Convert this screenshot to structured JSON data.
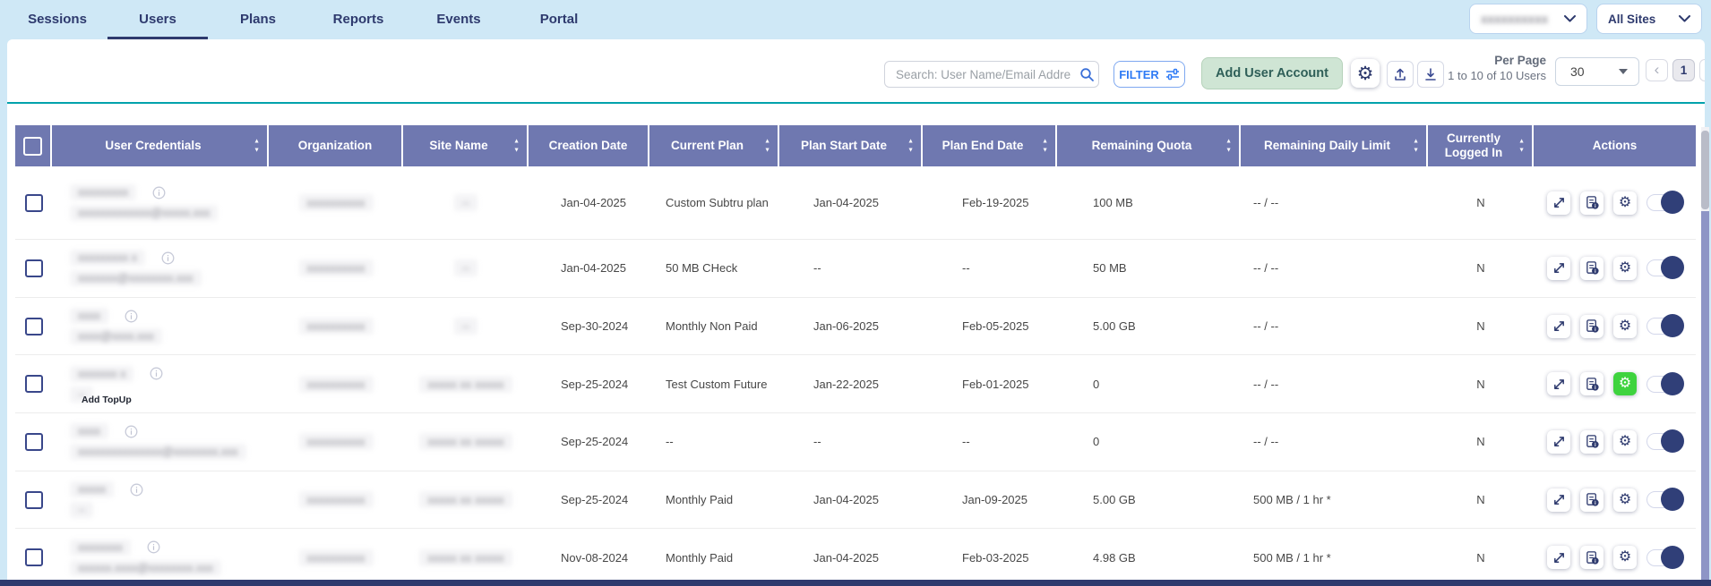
{
  "colors": {
    "page_bg": "#cfe8f6",
    "navy": "#2e3a6e",
    "table_header_bg": "#6f78b0",
    "teal_line": "#00a2ac",
    "add_user_green": "#cfe5d4",
    "filter_blue": "#2f7bf5",
    "topup_green": "#3ed33e",
    "scrollbar_purple": "#8e95c6"
  },
  "tabs": [
    {
      "label": "Sessions",
      "active": false
    },
    {
      "label": "Users",
      "active": true
    },
    {
      "label": "Plans",
      "active": false
    },
    {
      "label": "Reports",
      "active": false
    },
    {
      "label": "Events",
      "active": false
    },
    {
      "label": "Portal",
      "active": false
    }
  ],
  "top_right": {
    "account_select": {
      "value": "xxxxxxxxxx",
      "redacted": true,
      "icon": "chevron-down-icon"
    },
    "site_select": {
      "value": "All Sites",
      "icon": "chevron-down-icon"
    }
  },
  "toolbar": {
    "search": {
      "placeholder": "Search: User Name/Email Addre",
      "icon": "magnifier-icon"
    },
    "filter_button": {
      "label": "FILTER",
      "icon": "sliders-icon"
    },
    "add_user_button": {
      "label": "Add User Account"
    },
    "icon_buttons": [
      "settings-gear-icon",
      "upload-icon",
      "download-icon"
    ],
    "per_page_label": "Per Page",
    "range_text": "1 to 10 of 10 Users",
    "per_page_value": "30",
    "pagination": {
      "prev_icon": "chevron-left-icon",
      "current_page": "1",
      "next_icon": "chevron-right-icon"
    }
  },
  "table": {
    "columns": [
      {
        "label": "User Credentials",
        "sortable": true
      },
      {
        "label": "Organization",
        "sortable": false
      },
      {
        "label": "Site Name",
        "sortable": true
      },
      {
        "label": "Creation Date",
        "sortable": false
      },
      {
        "label": "Current Plan",
        "sortable": true
      },
      {
        "label": "Plan Start Date",
        "sortable": true
      },
      {
        "label": "Plan End Date",
        "sortable": true
      },
      {
        "label": "Remaining Quota",
        "sortable": true
      },
      {
        "label": "Remaining Daily Limit",
        "sortable": true
      },
      {
        "label": "Currently Logged In",
        "sortable": true
      },
      {
        "label": "Actions",
        "sortable": false
      }
    ],
    "rows": [
      {
        "user": {
          "name": "xxxxxxxxx",
          "email": "xxxxxxxxxxxxx@xxxxx.xxx",
          "redacted": true
        },
        "organization": {
          "text": "xxxxxxxxxx",
          "redacted": true
        },
        "site_name": {
          "text": "--",
          "redacted": true
        },
        "creation_date": "Jan-04-2025",
        "current_plan": "Custom Subtru plan",
        "plan_start_date": "Jan-04-2025",
        "plan_end_date": "Feb-19-2025",
        "remaining_quota": "100 MB",
        "remaining_daily_limit": "-- / --",
        "currently_logged_in": "N",
        "actions": {
          "topup_highlight": false,
          "topup_label": "",
          "toggle_on": true
        }
      },
      {
        "user": {
          "name": "xxxxxxxxx x",
          "email": "xxxxxxx@xxxxxxxx.xxx",
          "redacted": true
        },
        "organization": {
          "text": "xxxxxxxxxx",
          "redacted": true
        },
        "site_name": {
          "text": "--",
          "redacted": true
        },
        "creation_date": "Jan-04-2025",
        "current_plan": "50 MB CHeck",
        "plan_start_date": "--",
        "plan_end_date": "--",
        "remaining_quota": "50 MB",
        "remaining_daily_limit": "-- / --",
        "currently_logged_in": "N",
        "actions": {
          "topup_highlight": false,
          "topup_label": "",
          "toggle_on": true
        }
      },
      {
        "user": {
          "name": "xxxx",
          "email": "xxxx@xxxx.xxx",
          "redacted": true
        },
        "organization": {
          "text": "xxxxxxxxxx",
          "redacted": true
        },
        "site_name": {
          "text": "--",
          "redacted": true
        },
        "creation_date": "Sep-30-2024",
        "current_plan": "Monthly Non Paid",
        "plan_start_date": "Jan-06-2025",
        "plan_end_date": "Feb-05-2025",
        "remaining_quota": "5.00 GB",
        "remaining_daily_limit": "-- / --",
        "currently_logged_in": "N",
        "actions": {
          "topup_highlight": false,
          "topup_label": "",
          "toggle_on": true
        }
      },
      {
        "user": {
          "name": "xxxxxxx x",
          "email": "--",
          "redacted": true
        },
        "organization": {
          "text": "xxxxxxxxxx",
          "redacted": true
        },
        "site_name": {
          "text": "xxxxx xx xxxxx",
          "redacted": true
        },
        "creation_date": "Sep-25-2024",
        "current_plan": "Test Custom Future",
        "plan_start_date": "Jan-22-2025",
        "plan_end_date": "Feb-01-2025",
        "remaining_quota": "0",
        "remaining_daily_limit": "-- / --",
        "currently_logged_in": "N",
        "actions": {
          "topup_highlight": true,
          "topup_label": "Add TopUp",
          "toggle_on": true
        }
      },
      {
        "user": {
          "name": "xxxx",
          "email": "xxxxxxxxxxxxxxx@xxxxxxxx.xxx",
          "redacted": true
        },
        "organization": {
          "text": "xxxxxxxxxx",
          "redacted": true
        },
        "site_name": {
          "text": "xxxxx xx xxxxx",
          "redacted": true
        },
        "creation_date": "Sep-25-2024",
        "current_plan": "--",
        "plan_start_date": "--",
        "plan_end_date": "--",
        "remaining_quota": "0",
        "remaining_daily_limit": "-- / --",
        "currently_logged_in": "N",
        "actions": {
          "topup_highlight": false,
          "topup_label": "",
          "toggle_on": true
        }
      },
      {
        "user": {
          "name": "xxxxx",
          "email": "--",
          "redacted": true
        },
        "organization": {
          "text": "xxxxxxxxxx",
          "redacted": true
        },
        "site_name": {
          "text": "xxxxx xx xxxxx",
          "redacted": true
        },
        "creation_date": "Sep-25-2024",
        "current_plan": "Monthly Paid",
        "plan_start_date": "Jan-04-2025",
        "plan_end_date": "Jan-09-2025",
        "remaining_quota": "5.00 GB",
        "remaining_daily_limit": "500 MB / 1 hr *",
        "currently_logged_in": "N",
        "actions": {
          "topup_highlight": false,
          "topup_label": "",
          "toggle_on": true
        }
      },
      {
        "user": {
          "name": "xxxxxxxx",
          "email": "xxxxxx.xxxx@xxxxxxxx.xxx",
          "redacted": true
        },
        "organization": {
          "text": "xxxxxxxxxx",
          "redacted": true
        },
        "site_name": {
          "text": "xxxxx xx xxxxx",
          "redacted": true
        },
        "creation_date": "Nov-08-2024",
        "current_plan": "Monthly Paid",
        "plan_start_date": "Jan-04-2025",
        "plan_end_date": "Feb-03-2025",
        "remaining_quota": "4.98 GB",
        "remaining_daily_limit": "500 MB / 1 hr *",
        "currently_logged_in": "N",
        "actions": {
          "topup_highlight": false,
          "topup_label": "",
          "toggle_on": true
        }
      }
    ],
    "row_action_icons": [
      "expand-icon",
      "user-info-card-icon",
      "settings-gear-icon",
      "enable-toggle"
    ]
  }
}
